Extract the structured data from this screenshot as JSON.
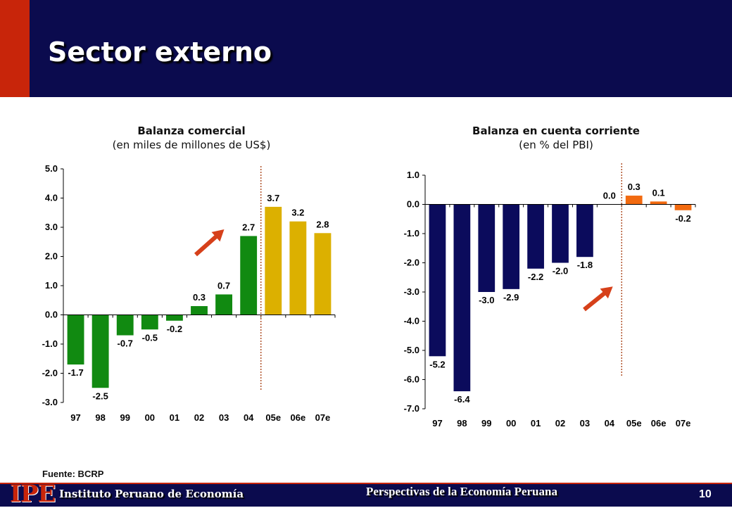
{
  "header": {
    "title": "Sector externo"
  },
  "charts": [
    {
      "title": "Balanza comercial",
      "subtitle": "(en miles de millones de US$)"
    },
    {
      "title": "Balanza en cuenta corriente",
      "subtitle": "(en % del PBI)"
    }
  ],
  "chart_data": [
    {
      "type": "bar",
      "title": "Balanza comercial",
      "subtitle": "(en miles de millones de US$)",
      "categories": [
        "97",
        "98",
        "99",
        "00",
        "01",
        "02",
        "03",
        "04",
        "05e",
        "06e",
        "07e"
      ],
      "values": [
        -1.7,
        -2.5,
        -0.7,
        -0.5,
        -0.2,
        0.3,
        0.7,
        2.7,
        3.7,
        3.2,
        2.8
      ],
      "value_labels": [
        "-1.7",
        "-2.5",
        "-0.7",
        "-0.5",
        "-0.2",
        "0.3",
        "0.7",
        "2.7",
        "3.7",
        "3.2",
        "2.8"
      ],
      "ylim": [
        -3.0,
        5.0
      ],
      "yticks": [
        -3.0,
        -2.0,
        -1.0,
        0.0,
        1.0,
        2.0,
        3.0,
        4.0,
        5.0
      ],
      "ytick_labels": [
        "-3.0",
        "-2.0",
        "-1.0",
        "0.0",
        "1.0",
        "2.0",
        "3.0",
        "4.0",
        "5.0"
      ],
      "bar_colors": [
        "#118a11",
        "#118a11",
        "#118a11",
        "#118a11",
        "#118a11",
        "#118a11",
        "#118a11",
        "#118a11",
        "#dcb000",
        "#dcb000",
        "#dcb000"
      ],
      "divider_between": [
        "04",
        "05e"
      ],
      "grid": false,
      "legend": "none"
    },
    {
      "type": "bar",
      "title": "Balanza en cuenta corriente",
      "subtitle": "(en % del PBI)",
      "categories": [
        "97",
        "98",
        "99",
        "00",
        "01",
        "02",
        "03",
        "04",
        "05e",
        "06e",
        "07e"
      ],
      "values": [
        -5.2,
        -6.4,
        -3.0,
        -2.9,
        -2.2,
        -2.0,
        -1.8,
        0.0,
        0.3,
        0.1,
        -0.2
      ],
      "value_labels": [
        "-5.2",
        "-6.4",
        "-3.0",
        "-2.9",
        "-2.2",
        "-2.0",
        "-1.8",
        "0.0",
        "0.3",
        "0.1",
        "-0.2"
      ],
      "ylim": [
        -7.0,
        1.0
      ],
      "yticks": [
        -7.0,
        -6.0,
        -5.0,
        -4.0,
        -3.0,
        -2.0,
        -1.0,
        0.0,
        1.0
      ],
      "ytick_labels": [
        "-7.0",
        "-6.0",
        "-5.0",
        "-4.0",
        "-3.0",
        "-2.0",
        "-1.0",
        "0.0",
        "1.0"
      ],
      "bar_colors": [
        "#0b0b5c",
        "#0b0b5c",
        "#0b0b5c",
        "#0b0b5c",
        "#0b0b5c",
        "#0b0b5c",
        "#0b0b5c",
        "#0b0b5c",
        "#f26a10",
        "#f26a10",
        "#f26a10"
      ],
      "divider_between": [
        "04",
        "05e"
      ],
      "grid": false,
      "legend": "none"
    }
  ],
  "colors": {
    "navy": "#0b0b4e",
    "accent_red": "#c8250a",
    "arrow": "#d6401a",
    "divider": "#b0522a"
  },
  "source": "Fuente: BCRP",
  "footer": {
    "logo": "IPE",
    "org": "Instituto Peruano de Economía",
    "center": "Perspectivas de la Economía Peruana",
    "page": "10"
  }
}
